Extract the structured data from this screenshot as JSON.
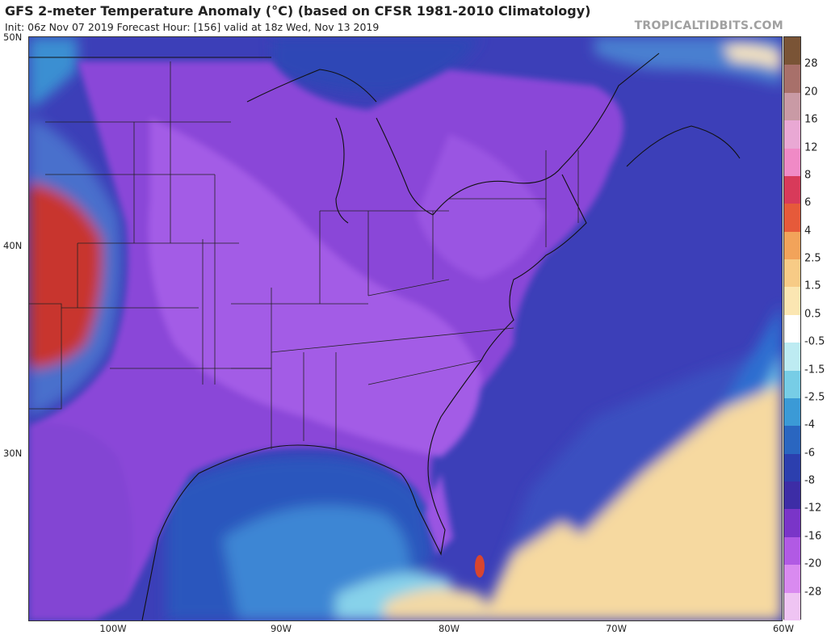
{
  "header": {
    "title": "GFS 2-meter Temperature Anomaly (°C) (based on CFSR 1981-2010 Climatology)",
    "subtitle": "Init: 06z Nov 07 2019   Forecast Hour: [156]   valid at 18z Wed, Nov 13 2019",
    "brand": "TROPICALTIDBITS.COM"
  },
  "axes": {
    "lat_labels": [
      "50N",
      "40N",
      "30N"
    ],
    "lon_labels": [
      "100W",
      "90W",
      "80W",
      "70W",
      "60W"
    ]
  },
  "colorbar": {
    "labels": [
      "28",
      "20",
      "16",
      "12",
      "8",
      "6",
      "4",
      "2.5",
      "1.5",
      "0.5",
      "-0.5",
      "-1.5",
      "-2.5",
      "-4",
      "-6",
      "-8",
      "-12",
      "-16",
      "-20",
      "-28"
    ],
    "colors": [
      "#7a5436",
      "#a8706a",
      "#c99aa5",
      "#e9a8d4",
      "#f08ac6",
      "#d83a5a",
      "#e65a3a",
      "#f2a35a",
      "#f7cb86",
      "#fbe6b2",
      "#ffffff",
      "#bdebf2",
      "#77cde6",
      "#3b9ad6",
      "#2a66c0",
      "#2c3fae",
      "#3d2da6",
      "#7a35c8",
      "#b15ae4",
      "#d98af0",
      "#efc4f3"
    ]
  },
  "colors": {
    "land_purple": "#8a47d8",
    "land_light": "#a35be6",
    "ocean_deep": "#3a3db6",
    "ocean_blue": "#2e5fc2",
    "ocean_light": "#5fa8e0",
    "warm_ocean": "#f6d9a0",
    "warm_red": "#c8352d"
  }
}
